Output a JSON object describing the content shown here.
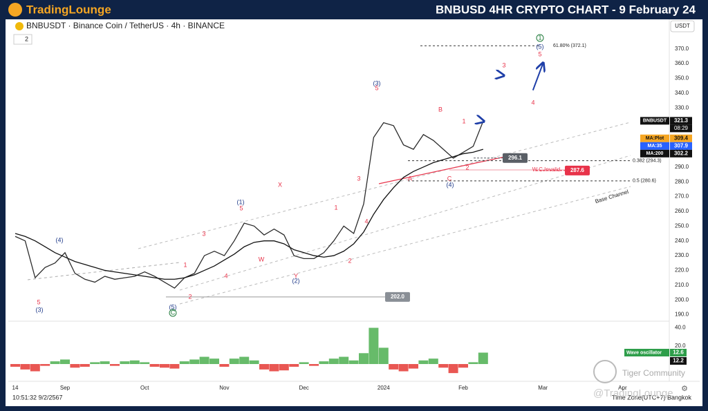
{
  "header": {
    "logo": "TradingLounge",
    "title": "BNBUSD 4HR CRYPTO CHART - 9 February 24"
  },
  "symbol_line": "BNBUSDT · Binance Coin / TetherUS · 4h · BINANCE",
  "indicator_count": "2",
  "currency": "USDT",
  "footer_time": "10:51:32 9/2/2567",
  "timezone": "Time Zone(UTC+7) Bangkok",
  "watermark": [
    "Tiger Community",
    "@TradingLounge"
  ],
  "chart_data": {
    "type": "line",
    "categories": [
      "14",
      null,
      null,
      null,
      null,
      "Sep",
      null,
      null,
      null,
      null,
      null,
      null,
      null,
      "Oct",
      null,
      null,
      null,
      null,
      null,
      null,
      null,
      "Nov",
      null,
      null,
      null,
      null,
      null,
      null,
      null,
      "Dec",
      null,
      null,
      null,
      null,
      null,
      null,
      null,
      "2024",
      null,
      null,
      null,
      null,
      null,
      null,
      null,
      "Feb",
      null,
      null,
      null,
      null,
      null,
      null,
      null,
      "Mar",
      null,
      null,
      null,
      null,
      null,
      null,
      null,
      "Apr"
    ],
    "series": [
      {
        "name": "BNBUSDT",
        "color": "#2b2b2b",
        "values": [
          243,
          240,
          215,
          222,
          225,
          232,
          218,
          214,
          212,
          216,
          214,
          215,
          216,
          219,
          216,
          212,
          208,
          215,
          218,
          230,
          233,
          230,
          240,
          252,
          250,
          244,
          248,
          244,
          230,
          228,
          228,
          232,
          240,
          250,
          245,
          265,
          310,
          320,
          318,
          305,
          302,
          312,
          308,
          302,
          296,
          300,
          304,
          321,
          null,
          null,
          null,
          null,
          null,
          null,
          null,
          null,
          null,
          null,
          null,
          null,
          null,
          null
        ]
      },
      {
        "name": "MA:200",
        "color": "#111111",
        "values": [
          245,
          243,
          240,
          236,
          232,
          229,
          226,
          224,
          222,
          220,
          219,
          218,
          217,
          216,
          215,
          214,
          214,
          215,
          217,
          220,
          223,
          227,
          231,
          236,
          239,
          240,
          240,
          238,
          234,
          232,
          230,
          229,
          230,
          233,
          238,
          246,
          258,
          268,
          276,
          283,
          287,
          290,
          293,
          295,
          297,
          299,
          300,
          302,
          null,
          null,
          null,
          null,
          null,
          null,
          null,
          null,
          null,
          null,
          null,
          null,
          null,
          null
        ]
      },
      {
        "name": "Projection",
        "color": "#1f3fa8",
        "values": [
          null,
          null,
          null,
          null,
          null,
          null,
          null,
          null,
          null,
          null,
          null,
          null,
          null,
          null,
          null,
          null,
          null,
          null,
          null,
          null,
          null,
          null,
          null,
          null,
          null,
          null,
          null,
          null,
          null,
          null,
          null,
          null,
          null,
          null,
          null,
          null,
          null,
          null,
          null,
          null,
          null,
          null,
          null,
          null,
          null,
          null,
          null,
          321,
          null,
          352,
          null,
          null,
          342,
          360,
          null,
          null,
          null,
          null,
          null,
          null,
          null,
          null
        ]
      }
    ],
    "ylim": [
      187,
      390
    ],
    "yticks": [
      {
        "value": 190,
        "label": "190.0"
      },
      {
        "value": 200,
        "label": "200.0"
      },
      {
        "value": 210,
        "label": "210.0"
      },
      {
        "value": 220,
        "label": "220.0"
      },
      {
        "value": 230,
        "label": "230.0"
      },
      {
        "value": 240,
        "label": "240.0"
      },
      {
        "value": 250,
        "label": "250.0"
      },
      {
        "value": 260,
        "label": "260.0"
      },
      {
        "value": 270,
        "label": "270.0"
      },
      {
        "value": 280,
        "label": "280.0"
      },
      {
        "value": 290,
        "label": "290.0"
      },
      {
        "value": 300,
        "label": "300.0"
      },
      {
        "value": 310,
        "label": "310.0"
      },
      {
        "value": 320,
        "label": "320.0"
      },
      {
        "value": 330,
        "label": "330.0"
      },
      {
        "value": 340,
        "label": "340.0"
      },
      {
        "value": 350,
        "label": "350.0"
      },
      {
        "value": 360,
        "label": "360.0"
      },
      {
        "value": 370,
        "label": "370.0"
      }
    ],
    "levels": [
      {
        "label": "61.80% (372.1)",
        "value": 372.1
      },
      {
        "label": "0.382 (294.3)",
        "value": 294.3
      },
      {
        "label": "0.5 (280.6)",
        "value": 280.6
      }
    ],
    "price_boxes": [
      {
        "value": 296.1,
        "label": "296.1",
        "color": "#5a5f66"
      },
      {
        "value": 287.6,
        "label": "287.6",
        "color": "#e8334a"
      },
      {
        "value": 202,
        "label": "202.0",
        "color": "#8a8f96"
      }
    ],
    "invalid_label": "W.C.Invalid",
    "channel_label": "Base Channel",
    "last_price": {
      "name": "BNBUSDT",
      "value": 321.3,
      "countdown": "08:29"
    },
    "ma_tags": [
      {
        "name": "MA:Plot",
        "value": 309.4,
        "color": "#f5a623"
      },
      {
        "name": "MA:35",
        "value": 307.9,
        "color": "#2962ff"
      },
      {
        "name": "MA:200",
        "value": 302.2,
        "color": "#111111"
      }
    ],
    "wave_labels": [
      "(4)",
      "5",
      "(3)",
      "1",
      "2",
      "3",
      "4",
      "(1)",
      "5",
      "W",
      "X",
      "Y",
      "(2)",
      "1",
      "2",
      "3",
      "4",
      "(3)",
      "5",
      "B",
      "1",
      "2",
      "A",
      "C",
      "(4)",
      "3",
      "4",
      "(5)",
      "5",
      "(5)",
      "1",
      "C"
    ],
    "oscillator": {
      "name": "Wave oscillator",
      "up_color": "#4caf50",
      "down_color": "#e53935",
      "values": [
        -3,
        -6,
        -8,
        -2,
        3,
        5,
        -4,
        -3,
        2,
        3,
        -2,
        3,
        4,
        2,
        -3,
        -4,
        -5,
        3,
        5,
        8,
        6,
        -3,
        6,
        8,
        4,
        -6,
        -8,
        -7,
        -3,
        2,
        -2,
        3,
        6,
        8,
        4,
        12,
        40,
        18,
        -6,
        -8,
        -5,
        4,
        6,
        -4,
        -10,
        -4,
        2,
        12.6
      ],
      "last_values": [
        12.6,
        12.2
      ],
      "ylim": [
        -16,
        45
      ],
      "yticks": [
        {
          "value": 40,
          "label": "40.0"
        },
        {
          "value": 20,
          "label": "20.0"
        }
      ]
    }
  }
}
